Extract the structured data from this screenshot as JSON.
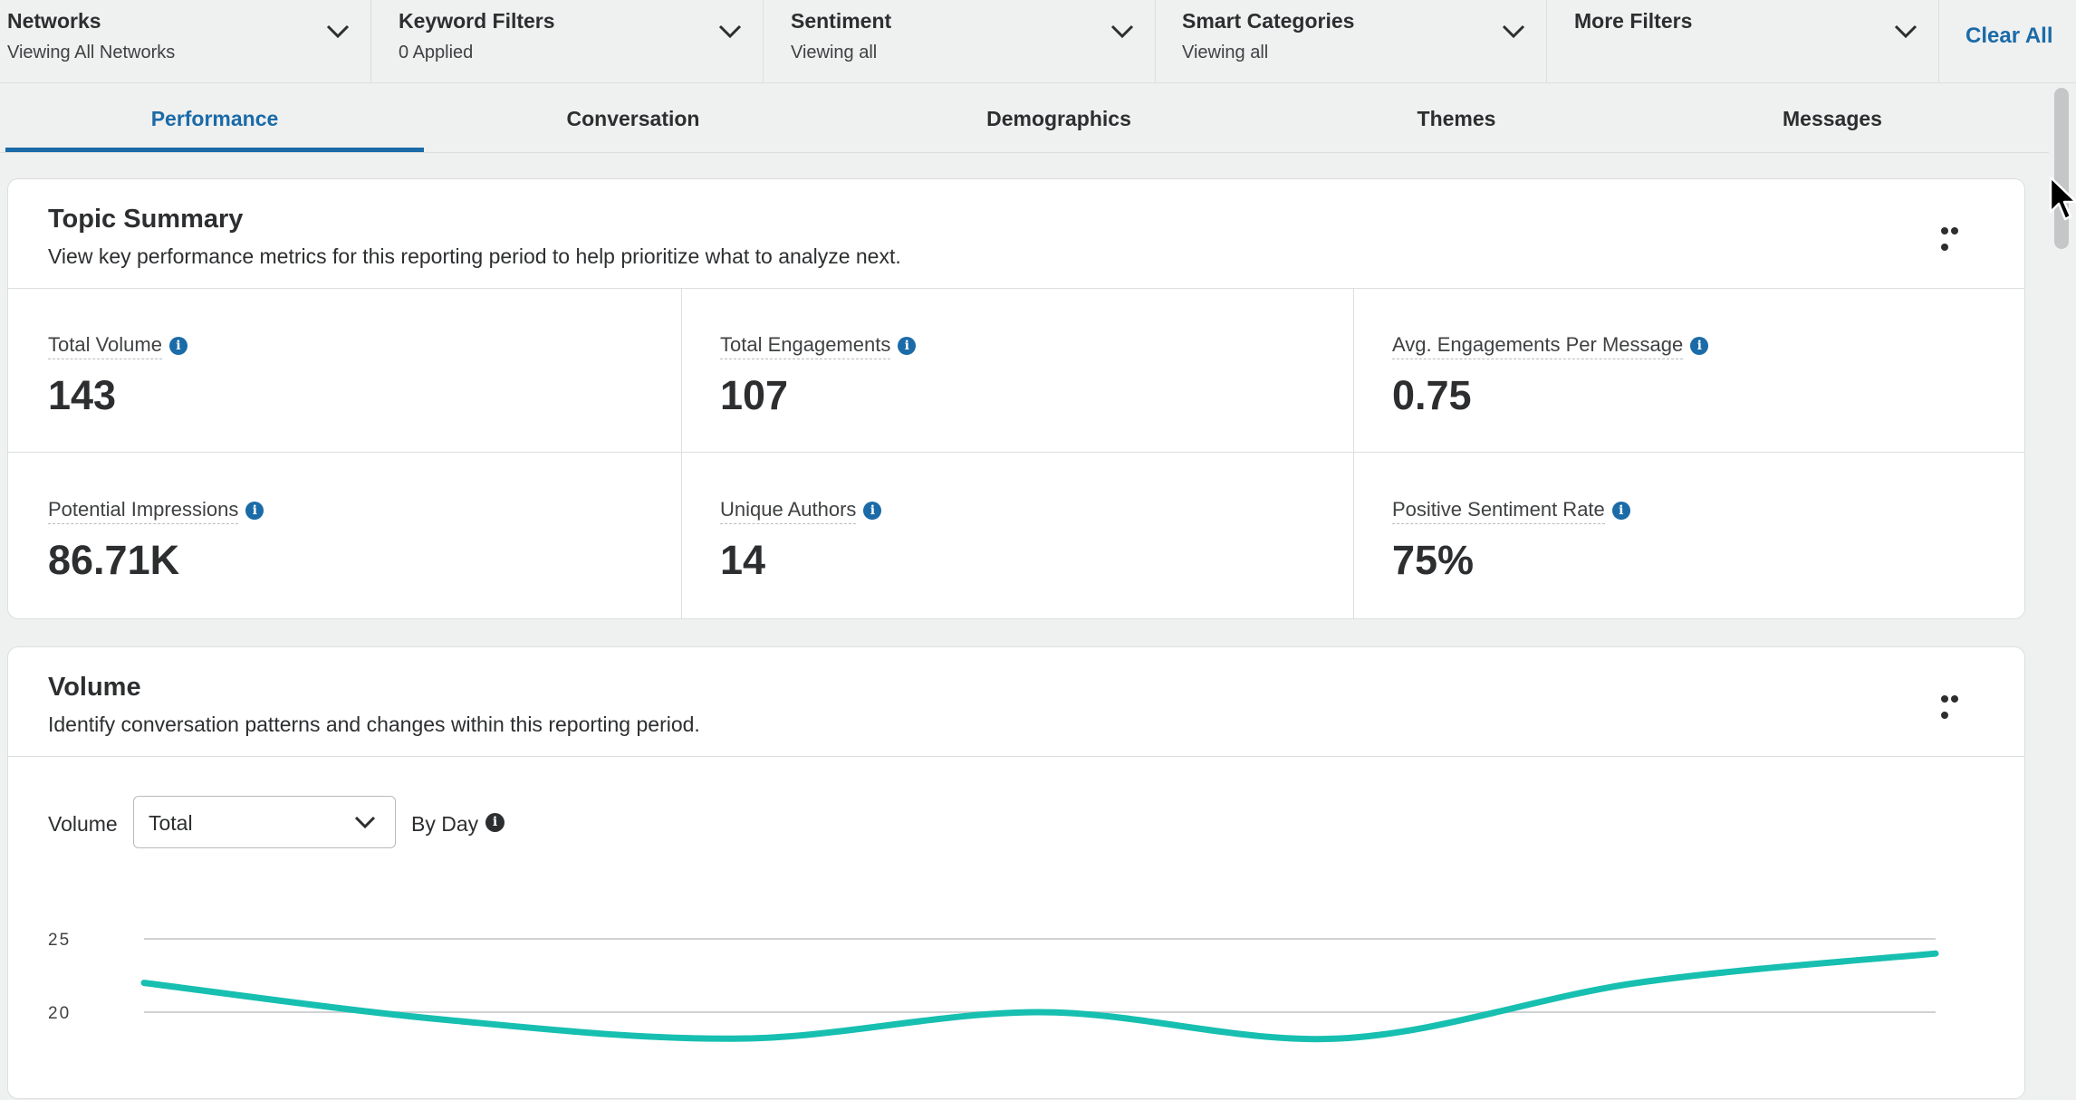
{
  "filters": [
    {
      "title": "Networks",
      "subtitle": "Viewing All Networks"
    },
    {
      "title": "Keyword Filters",
      "subtitle": "0 Applied"
    },
    {
      "title": "Sentiment",
      "subtitle": "Viewing all"
    },
    {
      "title": "Smart Categories",
      "subtitle": "Viewing all"
    },
    {
      "title": "More Filters",
      "subtitle": ""
    }
  ],
  "clear_all": "Clear All",
  "tabs": [
    {
      "label": "Performance",
      "active": true
    },
    {
      "label": "Conversation",
      "active": false
    },
    {
      "label": "Demographics",
      "active": false
    },
    {
      "label": "Themes",
      "active": false
    },
    {
      "label": "Messages",
      "active": false
    }
  ],
  "topic_summary": {
    "title": "Topic Summary",
    "description": "View key performance metrics for this reporting period to help prioritize what to analyze next.",
    "metrics": [
      {
        "label": "Total Volume",
        "value": "143"
      },
      {
        "label": "Total Engagements",
        "value": "107"
      },
      {
        "label": "Avg. Engagements Per Message",
        "value": "0.75"
      },
      {
        "label": "Potential Impressions",
        "value": "86.71K"
      },
      {
        "label": "Unique Authors",
        "value": "14"
      },
      {
        "label": "Positive Sentiment Rate",
        "value": "75%"
      }
    ]
  },
  "volume": {
    "title": "Volume",
    "description": "Identify conversation patterns and changes within this reporting period.",
    "control_label": "Volume",
    "select_value": "Total",
    "granularity_label": "By Day"
  },
  "icons": {
    "info": "info-icon",
    "chevron": "chevron-down-icon",
    "more": "more-horizontal-icon",
    "cursor": "mouse-pointer-icon"
  },
  "colors": {
    "accent": "#1a6ba8",
    "line": "#17bfb0"
  },
  "chart_data": {
    "type": "line",
    "title": "",
    "xlabel": "",
    "ylabel": "",
    "y_ticks": [
      20,
      25
    ],
    "series": [
      {
        "values": [
          22,
          19.5,
          18.2,
          20,
          18.2,
          22,
          24
        ]
      }
    ]
  }
}
